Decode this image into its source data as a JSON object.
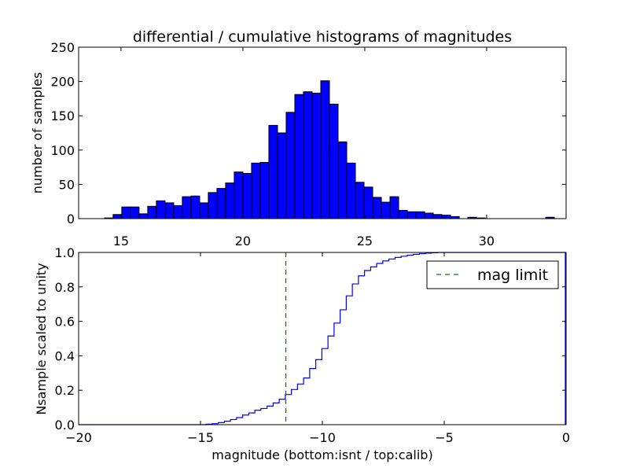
{
  "chart_data": [
    {
      "type": "bar",
      "title": "differential / cumulative histograms of magnitudes",
      "xlabel": "",
      "ylabel": "number of samples",
      "xlim": [
        13.26,
        33.26
      ],
      "ylim": [
        0,
        250
      ],
      "xticks": [
        "15",
        "20",
        "25",
        "30"
      ],
      "yticks": [
        "0",
        "50",
        "100",
        "150",
        "200",
        "250"
      ],
      "bin_start": 14.32,
      "bin_width": 0.355,
      "values": [
        1,
        6,
        17,
        17,
        7,
        18,
        26,
        23,
        19,
        32,
        33,
        23,
        38,
        44,
        52,
        68,
        66,
        81,
        82,
        136,
        125,
        155,
        181,
        185,
        183,
        201,
        167,
        112,
        81,
        53,
        46,
        31,
        24,
        32,
        12,
        10,
        10,
        8,
        6,
        5,
        3,
        0,
        2,
        1,
        0,
        0,
        0,
        0,
        0,
        0,
        0,
        2
      ],
      "bar_color": "#0000ff"
    },
    {
      "type": "line",
      "xlabel": "magnitude (bottom:isnt / top:calib)",
      "ylabel": "Nsample scaled to unity",
      "xlim": [
        -20,
        0
      ],
      "ylim": [
        0,
        1.0
      ],
      "xticks": [
        "−20",
        "−15",
        "−10",
        "−5",
        "0"
      ],
      "yticks": [
        "0.0",
        "0.2",
        "0.4",
        "0.6",
        "0.8",
        "1.0"
      ],
      "step_start": -14.77,
      "step_width": 0.25,
      "cumulative": [
        0.003,
        0.006,
        0.012,
        0.02,
        0.03,
        0.041,
        0.056,
        0.068,
        0.084,
        0.094,
        0.108,
        0.126,
        0.148,
        0.175,
        0.204,
        0.236,
        0.271,
        0.326,
        0.378,
        0.442,
        0.515,
        0.59,
        0.667,
        0.748,
        0.817,
        0.864,
        0.895,
        0.916,
        0.936,
        0.951,
        0.962,
        0.971,
        0.978,
        0.984,
        0.989,
        0.993,
        0.996,
        0.998,
        1.0
      ],
      "line_color": "#0000ff",
      "mag_limit": -11.5,
      "mag_limit_color": "#008000",
      "legend": {
        "label": "mag limit",
        "placement": "top-right"
      }
    }
  ]
}
